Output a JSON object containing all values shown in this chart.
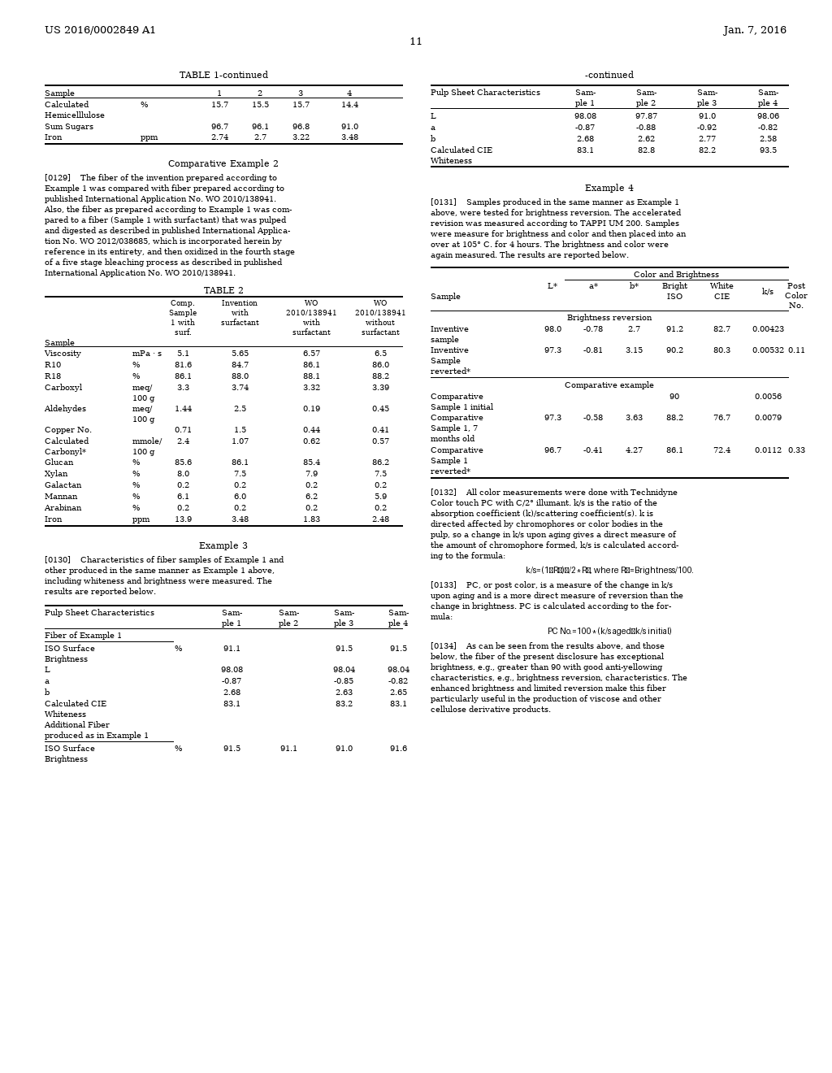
{
  "bg": "#ffffff",
  "header_left": "US 2016/0002849 A1",
  "header_right": "Jan. 7, 2016",
  "header_center": "11"
}
